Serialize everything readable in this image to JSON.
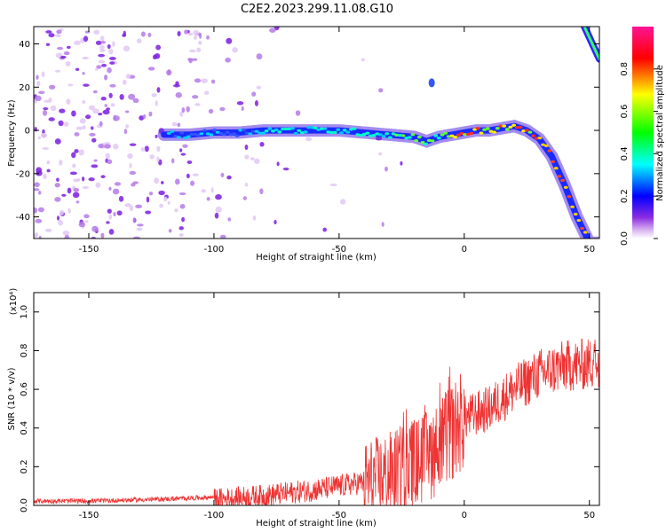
{
  "title": "C2E2.2023.299.11.08.G10",
  "chart_data": [
    {
      "type": "heatmap",
      "xlabel": "Height of straight line (km)",
      "ylabel": "Frequency (Hz)",
      "xlim": [
        -172,
        54
      ],
      "ylim": [
        -50,
        48
      ],
      "xticks": [
        -150,
        -100,
        -50,
        0,
        50
      ],
      "xtick_labels": [
        "-150",
        "-100",
        "-50",
        "0",
        "50"
      ],
      "yticks": [
        -40,
        -20,
        0,
        20,
        40
      ],
      "ytick_labels": [
        "-40",
        "-20",
        "0",
        "20",
        "40"
      ],
      "ridge": {
        "x": [
          -120,
          -110,
          -100,
          -90,
          -80,
          -70,
          -60,
          -50,
          -40,
          -30,
          -20,
          -15,
          -10,
          -5,
          0,
          5,
          10,
          15,
          20,
          25,
          30,
          35,
          40,
          45,
          50
        ],
        "y": [
          -2,
          -2,
          -1,
          -1,
          0,
          0,
          0,
          0,
          -1,
          -2,
          -3,
          -5,
          -3,
          -2,
          -1,
          0,
          0,
          1,
          2,
          0,
          -4,
          -12,
          -25,
          -40,
          -52
        ]
      },
      "upper_branch": {
        "x": [
          48,
          50,
          52,
          54
        ],
        "y": [
          48,
          43,
          38,
          33
        ]
      },
      "isolated_blob": {
        "x": -13,
        "y": 22
      },
      "colorbar": {
        "label": "Normalized spectral amplitude",
        "range": [
          0,
          1
        ],
        "ticks": [
          0,
          0.2,
          0.4,
          0.6,
          0.8
        ],
        "tick_labels": [
          "0.0",
          "0.2",
          "0.4",
          "0.6",
          "0.8"
        ],
        "colors": [
          "#ffffff",
          "#d9b3f0",
          "#8a2be2",
          "#0000ff",
          "#00ffff",
          "#00ff00",
          "#ffff00",
          "#ff0000",
          "#ff1493"
        ]
      }
    },
    {
      "type": "line",
      "xlabel": "Height of straight line (km)",
      "ylabel": "SNR (10 * v/v)",
      "multiplier": "(x10⁴)",
      "xlim": [
        -172,
        54
      ],
      "ylim": [
        0,
        1.1
      ],
      "xticks": [
        -150,
        -100,
        -50,
        0,
        50
      ],
      "xtick_labels": [
        "-150",
        "-100",
        "-50",
        "0",
        "50"
      ],
      "yticks": [
        0,
        0.2,
        0.4,
        0.6,
        0.8,
        1.0
      ],
      "ytick_labels": [
        "0.0",
        "0.2",
        "0.4",
        "0.6",
        "0.8",
        "1.0"
      ],
      "color": "#ee3333",
      "series": [
        {
          "x": [
            -172,
            -150,
            -120,
            -100,
            -80,
            -60,
            -40,
            -30,
            -20,
            -15,
            -10,
            -5,
            0,
            10,
            20,
            30,
            40,
            50,
            54
          ],
          "y": [
            0.01,
            0.01,
            0.02,
            0.03,
            0.05,
            0.08,
            0.12,
            0.16,
            0.22,
            0.25,
            0.3,
            0.38,
            0.45,
            0.5,
            0.6,
            0.68,
            0.72,
            0.73,
            0.75
          ]
        }
      ]
    }
  ]
}
